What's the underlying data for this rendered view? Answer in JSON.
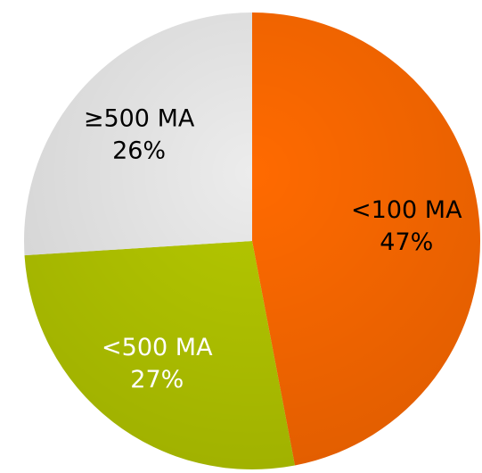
{
  "chart_data": {
    "type": "pie",
    "categories": [
      "<100 MA",
      "<500 MA",
      "≥500 MA"
    ],
    "values": [
      47,
      27,
      26
    ],
    "value_labels": [
      "47%",
      "27%",
      "26%"
    ],
    "colors": [
      "#ff6a00",
      "#b5c800",
      "#ececec"
    ]
  }
}
